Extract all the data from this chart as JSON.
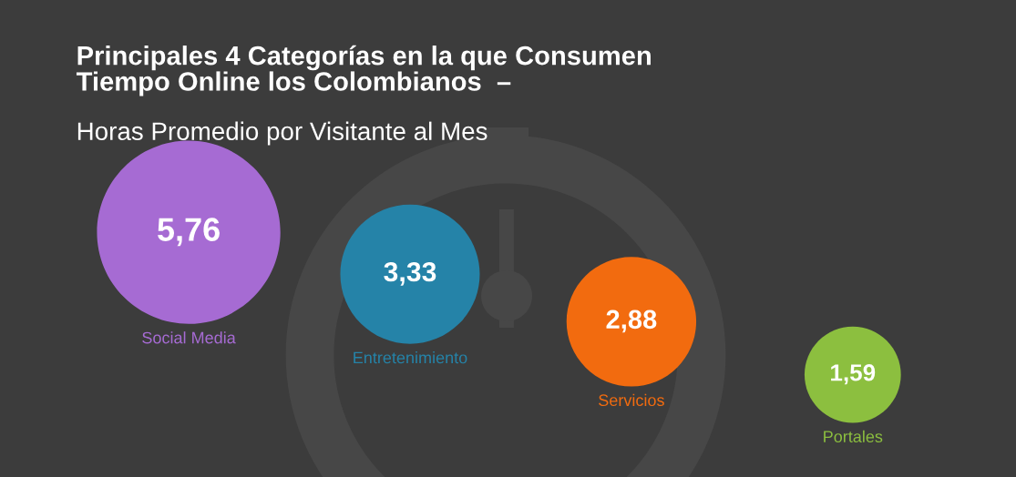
{
  "chart_data": {
    "type": "other",
    "title": "Principales 4 Categorías en la que Consumen\nTiempo Online los Colombianos  –",
    "subtitle": "Horas Promedio por Visitante al Mes",
    "categories": [
      "Social Media",
      "Entretenimiento",
      "Servicios",
      "Portales"
    ],
    "values": [
      5.76,
      3.33,
      2.88,
      1.59
    ],
    "value_labels": [
      "5,76",
      "3,33",
      "2,88",
      "1,59"
    ],
    "colors": [
      "#a66bd3",
      "#2583a8",
      "#f26b0f",
      "#8cbf3f"
    ]
  }
}
